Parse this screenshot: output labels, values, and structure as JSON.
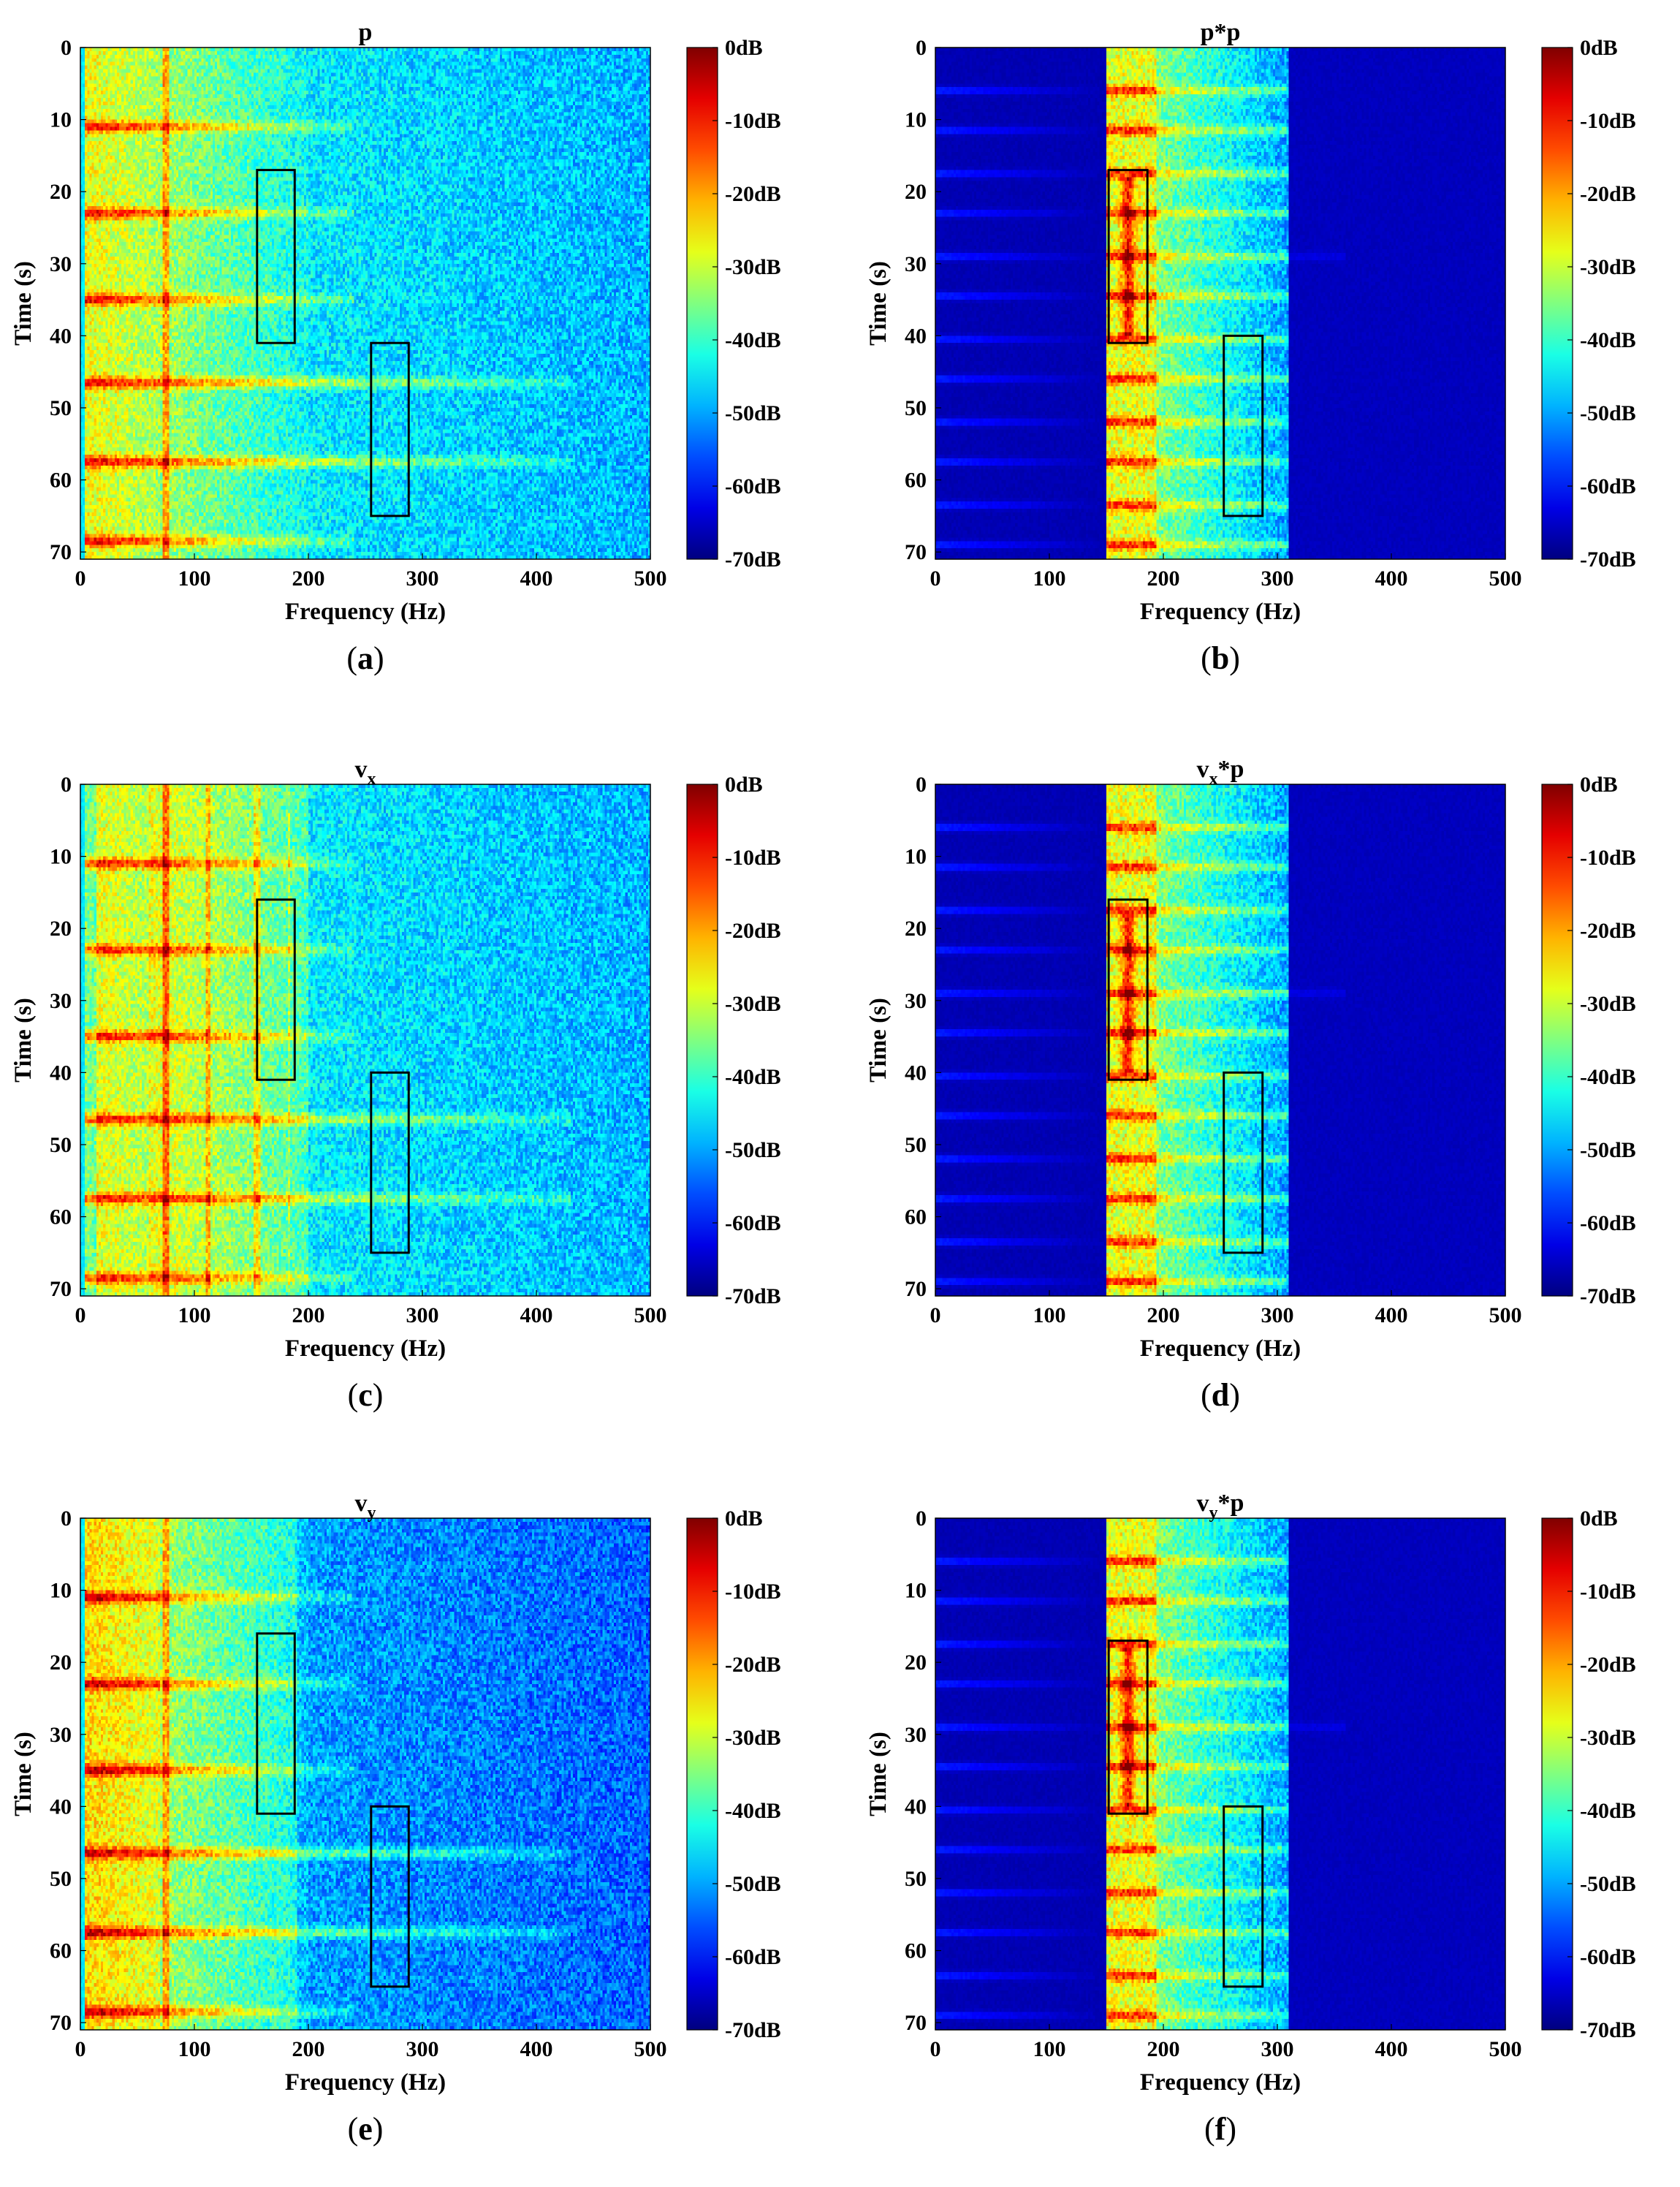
{
  "chart_data": [
    {
      "id": "a",
      "type": "heatmap",
      "caption": "a",
      "title": "p",
      "title_main": "p",
      "title_sub": "",
      "title_tail": "",
      "xlabel": "Frequency (Hz)",
      "ylabel": "Time (s)",
      "xlim": [
        0,
        500
      ],
      "ylim": [
        0,
        71
      ],
      "xticks": [
        "0",
        "100",
        "200",
        "300",
        "400",
        "500"
      ],
      "yticks": [
        "0",
        "10",
        "20",
        "30",
        "40",
        "50",
        "60",
        "70"
      ],
      "colorbar": {
        "ticks": [
          "0dB",
          "-10dB",
          "-20dB",
          "-30dB",
          "-40dB",
          "-50dB",
          "-60dB",
          "-70dB"
        ],
        "range_db": [
          -70,
          0
        ],
        "colormap": "jet"
      },
      "highlight_boxes": [
        {
          "f_min": 155,
          "f_max": 188,
          "t_min": 17,
          "t_max": 41
        },
        {
          "f_min": 255,
          "f_max": 288,
          "t_min": 41,
          "t_max": 65
        }
      ],
      "style": "broadband"
    },
    {
      "id": "b",
      "type": "heatmap",
      "caption": "b",
      "title": "p*p",
      "title_main": "p*p",
      "title_sub": "",
      "title_tail": "",
      "xlabel": "Frequency (Hz)",
      "ylabel": "Time (s)",
      "xlim": [
        0,
        500
      ],
      "ylim": [
        0,
        71
      ],
      "xticks": [
        "0",
        "100",
        "200",
        "300",
        "400",
        "500"
      ],
      "yticks": [
        "0",
        "10",
        "20",
        "30",
        "40",
        "50",
        "60",
        "70"
      ],
      "colorbar": {
        "ticks": [
          "0dB",
          "-10dB",
          "-20dB",
          "-30dB",
          "-40dB",
          "-50dB",
          "-60dB",
          "-70dB"
        ],
        "range_db": [
          -70,
          0
        ],
        "colormap": "jet"
      },
      "highlight_boxes": [
        {
          "f_min": 152,
          "f_max": 186,
          "t_min": 17,
          "t_max": 41
        },
        {
          "f_min": 253,
          "f_max": 287,
          "t_min": 40,
          "t_max": 65
        }
      ],
      "style": "banded"
    },
    {
      "id": "c",
      "type": "heatmap",
      "caption": "c",
      "title": "v_x",
      "title_main": "v",
      "title_sub": "x",
      "title_tail": "",
      "xlabel": "Frequency (Hz)",
      "ylabel": "Time (s)",
      "xlim": [
        0,
        500
      ],
      "ylim": [
        0,
        71
      ],
      "xticks": [
        "0",
        "100",
        "200",
        "300",
        "400",
        "500"
      ],
      "yticks": [
        "0",
        "10",
        "20",
        "30",
        "40",
        "50",
        "60",
        "70"
      ],
      "colorbar": {
        "ticks": [
          "0dB",
          "-10dB",
          "-20dB",
          "-30dB",
          "-40dB",
          "-50dB",
          "-60dB",
          "-70dB"
        ],
        "range_db": [
          -70,
          0
        ],
        "colormap": "jet"
      },
      "highlight_boxes": [
        {
          "f_min": 155,
          "f_max": 188,
          "t_min": 16,
          "t_max": 41
        },
        {
          "f_min": 255,
          "f_max": 288,
          "t_min": 40,
          "t_max": 65
        }
      ],
      "style": "broadband_vx"
    },
    {
      "id": "d",
      "type": "heatmap",
      "caption": "d",
      "title": "v_x*p",
      "title_main": "v",
      "title_sub": "x",
      "title_tail": "*p",
      "xlabel": "Frequency (Hz)",
      "ylabel": "Time (s)",
      "xlim": [
        0,
        500
      ],
      "ylim": [
        0,
        71
      ],
      "xticks": [
        "0",
        "100",
        "200",
        "300",
        "400",
        "500"
      ],
      "yticks": [
        "0",
        "10",
        "20",
        "30",
        "40",
        "50",
        "60",
        "70"
      ],
      "colorbar": {
        "ticks": [
          "0dB",
          "-10dB",
          "-20dB",
          "-30dB",
          "-40dB",
          "-50dB",
          "-60dB",
          "-70dB"
        ],
        "range_db": [
          -70,
          0
        ],
        "colormap": "jet"
      },
      "highlight_boxes": [
        {
          "f_min": 152,
          "f_max": 186,
          "t_min": 16,
          "t_max": 41
        },
        {
          "f_min": 253,
          "f_max": 287,
          "t_min": 40,
          "t_max": 65
        }
      ],
      "style": "banded"
    },
    {
      "id": "e",
      "type": "heatmap",
      "caption": "e",
      "title": "v_y",
      "title_main": "v",
      "title_sub": "y",
      "title_tail": "",
      "xlabel": "Frequency (Hz)",
      "ylabel": "Time (s)",
      "xlim": [
        0,
        500
      ],
      "ylim": [
        0,
        71
      ],
      "xticks": [
        "0",
        "100",
        "200",
        "300",
        "400",
        "500"
      ],
      "yticks": [
        "0",
        "10",
        "20",
        "30",
        "40",
        "50",
        "60",
        "70"
      ],
      "colorbar": {
        "ticks": [
          "0dB",
          "-10dB",
          "-20dB",
          "-30dB",
          "-40dB",
          "-50dB",
          "-60dB",
          "-70dB"
        ],
        "range_db": [
          -70,
          0
        ],
        "colormap": "jet"
      },
      "highlight_boxes": [
        {
          "f_min": 155,
          "f_max": 188,
          "t_min": 16,
          "t_max": 41
        },
        {
          "f_min": 255,
          "f_max": 288,
          "t_min": 40,
          "t_max": 65
        }
      ],
      "style": "broadband_vy"
    },
    {
      "id": "f",
      "type": "heatmap",
      "caption": "f",
      "title": "v_y*p",
      "title_main": "v",
      "title_sub": "y",
      "title_tail": "*p",
      "xlabel": "Frequency (Hz)",
      "ylabel": "Time (s)",
      "xlim": [
        0,
        500
      ],
      "ylim": [
        0,
        71
      ],
      "xticks": [
        "0",
        "100",
        "200",
        "300",
        "400",
        "500"
      ],
      "yticks": [
        "0",
        "10",
        "20",
        "30",
        "40",
        "50",
        "60",
        "70"
      ],
      "colorbar": {
        "ticks": [
          "0dB",
          "-10dB",
          "-20dB",
          "-30dB",
          "-40dB",
          "-50dB",
          "-60dB",
          "-70dB"
        ],
        "range_db": [
          -70,
          0
        ],
        "colormap": "jet"
      },
      "highlight_boxes": [
        {
          "f_min": 152,
          "f_max": 186,
          "t_min": 17,
          "t_max": 41
        },
        {
          "f_min": 253,
          "f_max": 287,
          "t_min": 40,
          "t_max": 65
        }
      ],
      "style": "banded"
    }
  ]
}
